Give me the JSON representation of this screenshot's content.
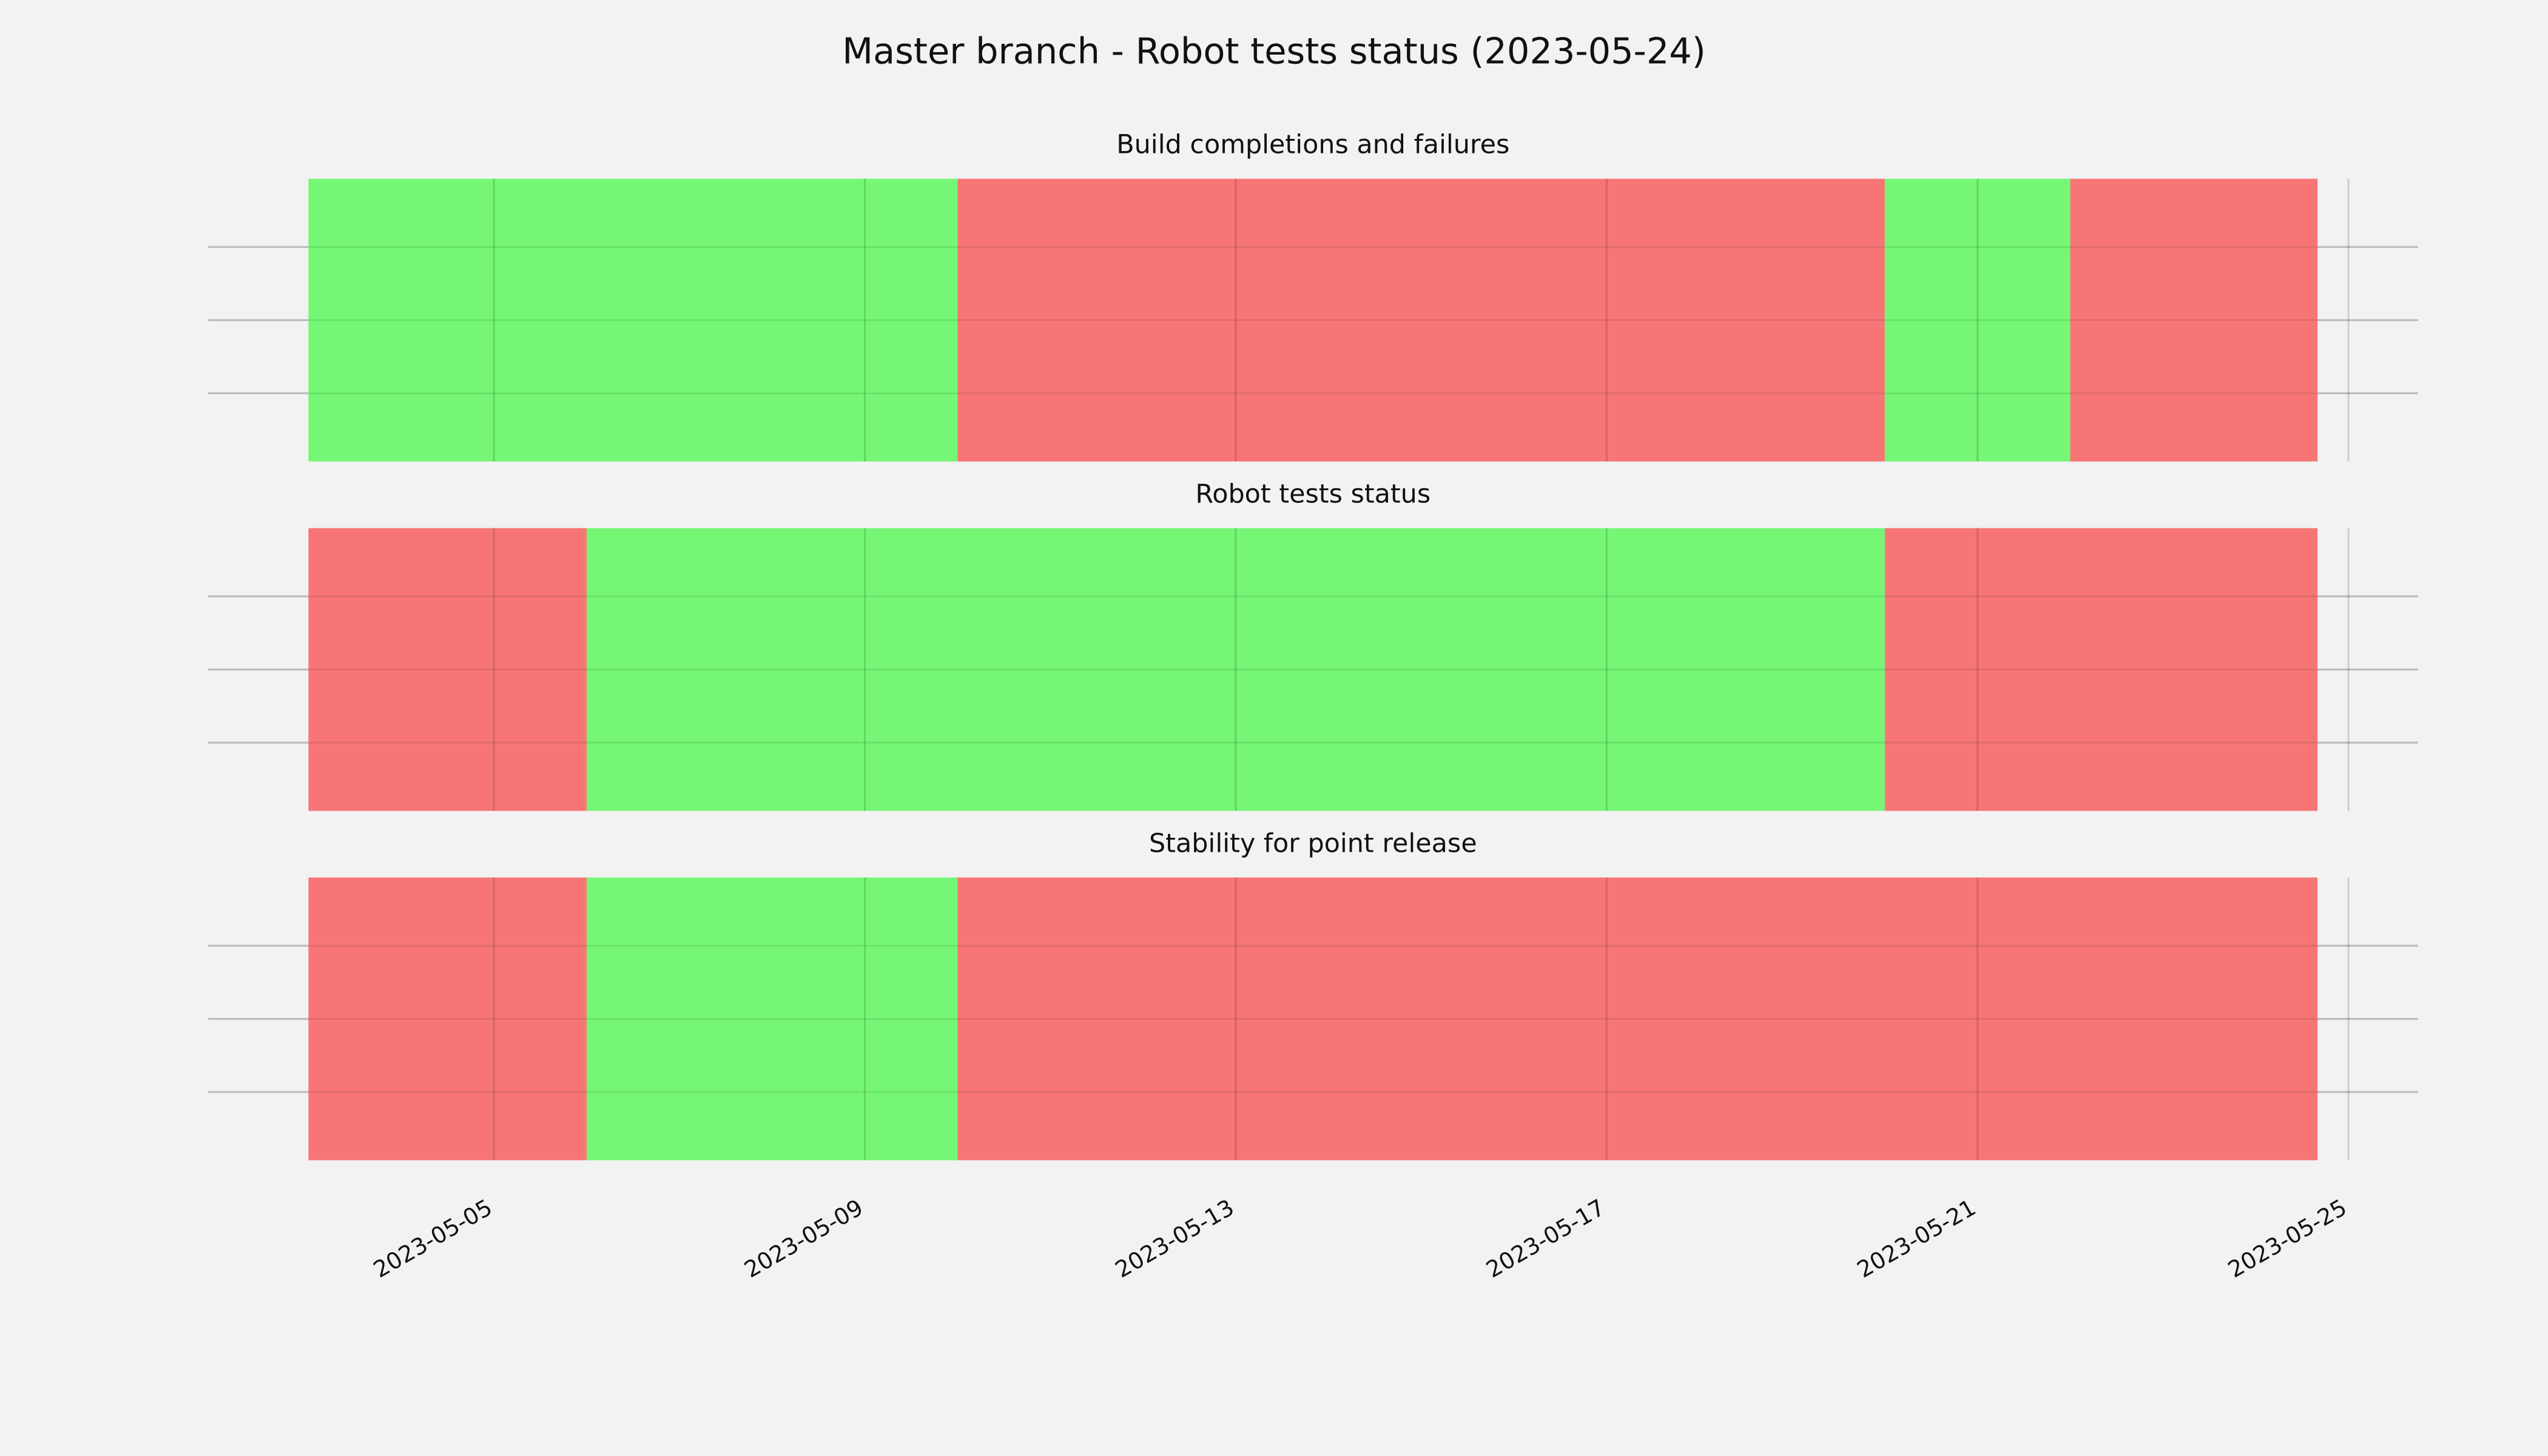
{
  "title": "Master branch - Robot tests status (2023-05-24)",
  "chart_data": [
    {
      "type": "timeline",
      "title": "Build completions and failures",
      "segments": [
        {
          "start": "2023-05-03",
          "end": "2023-05-10",
          "color": "#75f775"
        },
        {
          "start": "2023-05-10",
          "end": "2023-05-20",
          "color": "#f77675"
        },
        {
          "start": "2023-05-20",
          "end": "2023-05-22",
          "color": "#75f775"
        },
        {
          "start": "2023-05-22",
          "end": "2023-05-24T16:00",
          "color": "#f77675"
        }
      ],
      "xlim": [
        "2023-05-01T22:00",
        "2023-05-25T18:00"
      ],
      "xticks": [
        "2023-05-05",
        "2023-05-09",
        "2023-05-13",
        "2023-05-17",
        "2023-05-21",
        "2023-05-25"
      ],
      "grid": true
    },
    {
      "type": "timeline",
      "title": "Robot tests status",
      "segments": [
        {
          "start": "2023-05-03",
          "end": "2023-05-06",
          "color": "#f77675"
        },
        {
          "start": "2023-05-06",
          "end": "2023-05-20",
          "color": "#75f775"
        },
        {
          "start": "2023-05-20",
          "end": "2023-05-24T16:00",
          "color": "#f77675"
        }
      ],
      "xlim": [
        "2023-05-01T22:00",
        "2023-05-25T18:00"
      ],
      "xticks": [
        "2023-05-05",
        "2023-05-09",
        "2023-05-13",
        "2023-05-17",
        "2023-05-21",
        "2023-05-25"
      ],
      "grid": true
    },
    {
      "type": "timeline",
      "title": "Stability for point release",
      "segments": [
        {
          "start": "2023-05-03",
          "end": "2023-05-06",
          "color": "#f77675"
        },
        {
          "start": "2023-05-06",
          "end": "2023-05-10",
          "color": "#75f775"
        },
        {
          "start": "2023-05-10",
          "end": "2023-05-24T16:00",
          "color": "#f77675"
        }
      ],
      "xlim": [
        "2023-05-01T22:00",
        "2023-05-25T18:00"
      ],
      "xticks": [
        "2023-05-05",
        "2023-05-09",
        "2023-05-13",
        "2023-05-17",
        "2023-05-21",
        "2023-05-25"
      ],
      "grid": true
    }
  ]
}
